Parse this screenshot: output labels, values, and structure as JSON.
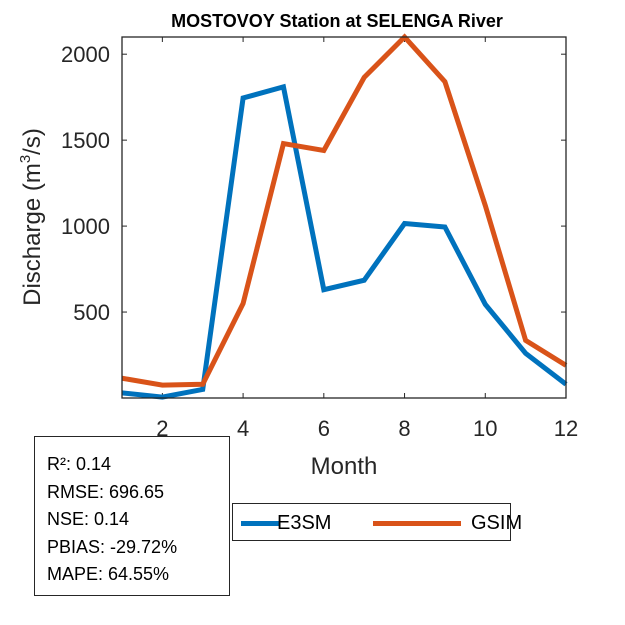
{
  "chart_data": {
    "type": "line",
    "title": "MOSTOVOY  Station at  SELENGA  River",
    "xlabel": "Month",
    "ylabel_main": "Discharge (m",
    "ylabel_sup": "3",
    "ylabel_tail": "/s)",
    "xlim": [
      1,
      12
    ],
    "ylim": [
      0,
      2100
    ],
    "xticks": [
      2,
      4,
      6,
      8,
      10,
      12
    ],
    "yticks": [
      500,
      1000,
      1500,
      2000
    ],
    "x": [
      1,
      2,
      3,
      4,
      5,
      6,
      7,
      8,
      9,
      10,
      11,
      12
    ],
    "series": [
      {
        "name": "E3SM",
        "color": "#0072BD",
        "values": [
          30,
          5,
          50,
          1745,
          1810,
          630,
          685,
          1015,
          995,
          545,
          260,
          80
        ]
      },
      {
        "name": "GSIM",
        "color": "#D95319",
        "values": [
          115,
          75,
          80,
          550,
          1480,
          1440,
          1865,
          2100,
          1840,
          1120,
          335,
          190
        ]
      }
    ]
  },
  "stats": [
    {
      "label": "R²: ",
      "value": "0.14"
    },
    {
      "label": "RMSE: ",
      "value": "696.65"
    },
    {
      "label": "NSE: ",
      "value": "0.14"
    },
    {
      "label": "PBIAS: ",
      "value": "-29.72%"
    },
    {
      "label": "MAPE: ",
      "value": "64.55%"
    }
  ],
  "legend": {
    "items": [
      {
        "label": "E3SM",
        "color": "#0072BD"
      },
      {
        "label": "GSIM",
        "color": "#D95319"
      }
    ]
  }
}
